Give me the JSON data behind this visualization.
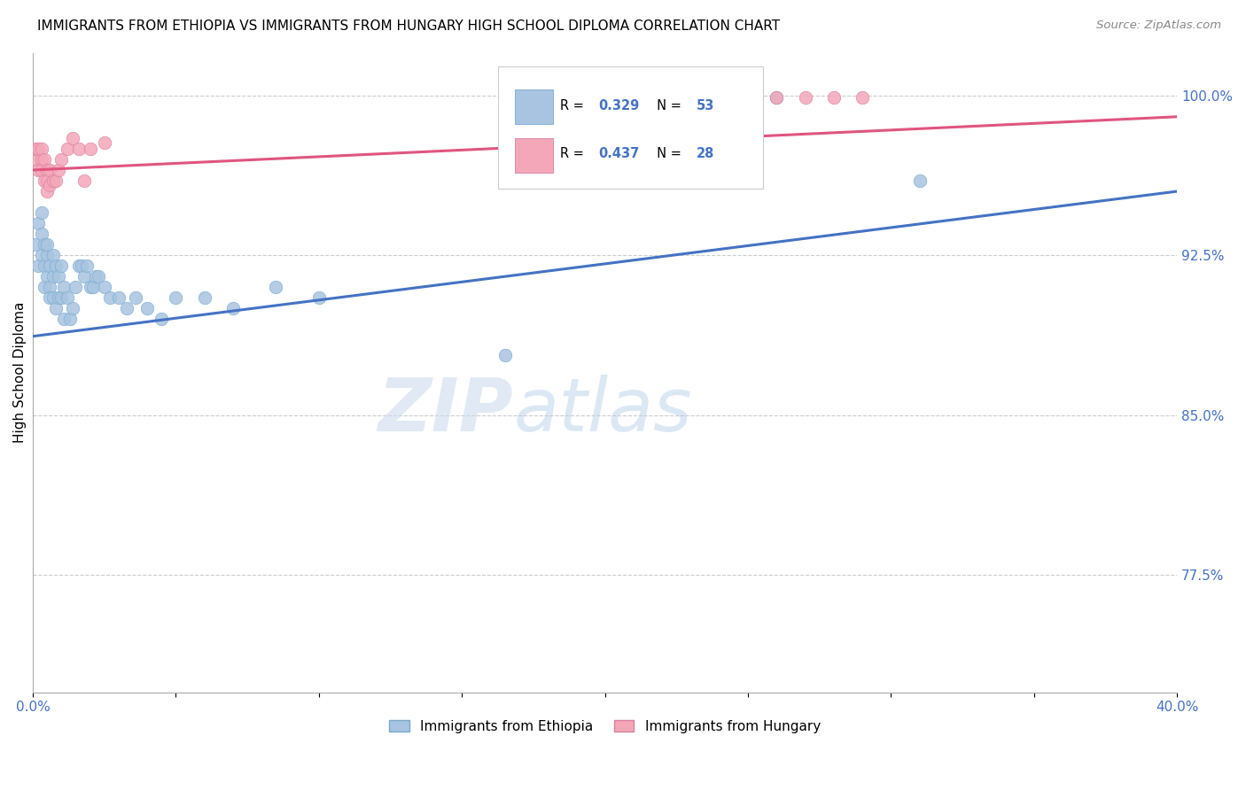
{
  "title": "IMMIGRANTS FROM ETHIOPIA VS IMMIGRANTS FROM HUNGARY HIGH SCHOOL DIPLOMA CORRELATION CHART",
  "source": "Source: ZipAtlas.com",
  "ylabel": "High School Diploma",
  "label1": "Immigrants from Ethiopia",
  "label2": "Immigrants from Hungary",
  "color1": "#a8c4e0",
  "color2": "#f4a7b9",
  "trendline1_color": "#4472c4",
  "trendline2_color": "#e05580",
  "watermark_zip": "ZIP",
  "watermark_atlas": "atlas",
  "xlim": [
    0.0,
    0.4
  ],
  "ylim": [
    0.72,
    1.02
  ],
  "ytick_vals": [
    0.775,
    0.85,
    0.925,
    1.0
  ],
  "ytick_labels": [
    "77.5%",
    "85.0%",
    "92.5%",
    "100.0%"
  ],
  "legend_r1": "0.329",
  "legend_n1": "53",
  "legend_r2": "0.437",
  "legend_n2": "28",
  "ethiopia_x": [
    0.001,
    0.002,
    0.002,
    0.003,
    0.003,
    0.003,
    0.004,
    0.004,
    0.004,
    0.005,
    0.005,
    0.005,
    0.006,
    0.006,
    0.006,
    0.007,
    0.007,
    0.007,
    0.008,
    0.008,
    0.009,
    0.009,
    0.01,
    0.01,
    0.011,
    0.011,
    0.012,
    0.013,
    0.014,
    0.015,
    0.016,
    0.017,
    0.018,
    0.019,
    0.02,
    0.021,
    0.022,
    0.023,
    0.025,
    0.027,
    0.03,
    0.033,
    0.036,
    0.04,
    0.045,
    0.05,
    0.06,
    0.07,
    0.085,
    0.1,
    0.165,
    0.26,
    0.31
  ],
  "ethiopia_y": [
    0.93,
    0.94,
    0.92,
    0.935,
    0.945,
    0.925,
    0.93,
    0.92,
    0.91,
    0.925,
    0.93,
    0.915,
    0.92,
    0.91,
    0.905,
    0.915,
    0.925,
    0.905,
    0.92,
    0.9,
    0.915,
    0.905,
    0.92,
    0.905,
    0.91,
    0.895,
    0.905,
    0.895,
    0.9,
    0.91,
    0.92,
    0.92,
    0.915,
    0.92,
    0.91,
    0.91,
    0.915,
    0.915,
    0.91,
    0.905,
    0.905,
    0.9,
    0.905,
    0.9,
    0.895,
    0.905,
    0.905,
    0.9,
    0.91,
    0.905,
    0.878,
    0.999,
    0.96
  ],
  "hungary_x": [
    0.001,
    0.001,
    0.002,
    0.002,
    0.003,
    0.003,
    0.003,
    0.004,
    0.004,
    0.005,
    0.005,
    0.005,
    0.006,
    0.006,
    0.007,
    0.008,
    0.009,
    0.01,
    0.012,
    0.014,
    0.016,
    0.018,
    0.02,
    0.025,
    0.26,
    0.27,
    0.28,
    0.29
  ],
  "hungary_y": [
    0.97,
    0.975,
    0.965,
    0.975,
    0.97,
    0.975,
    0.965,
    0.96,
    0.97,
    0.965,
    0.955,
    0.96,
    0.965,
    0.958,
    0.96,
    0.96,
    0.965,
    0.97,
    0.975,
    0.98,
    0.975,
    0.96,
    0.975,
    0.978,
    0.999,
    0.999,
    0.999,
    0.999
  ]
}
